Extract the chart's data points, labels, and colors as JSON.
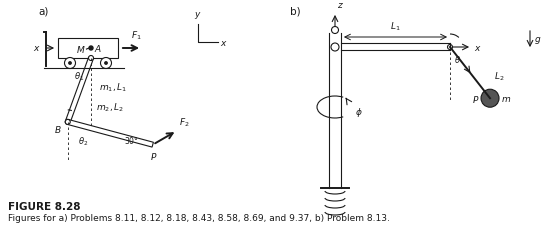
{
  "fig_width": 5.48,
  "fig_height": 2.45,
  "dpi": 100,
  "background": "#ffffff",
  "figure_label": "FIGURE 8.28",
  "caption": "Figures for a) Problems 8.11, 8.12, 8.18, 8.43, 8.58, 8.69, and 9.37, b) Problem 8.13.",
  "text_color": "#1a1a1a"
}
